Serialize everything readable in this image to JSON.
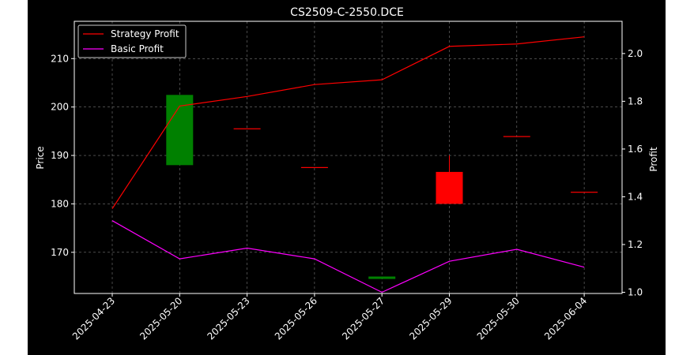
{
  "chart_data": {
    "type": "candlestick+line",
    "title": "CS2509-C-2550.DCE",
    "ylabel_left": "Price",
    "ylabel_right": "Profit",
    "xlabel": "",
    "categories": [
      "2025-04-23",
      "2025-05-20",
      "2025-05-23",
      "2025-05-26",
      "2025-05-27",
      "2025-05-29",
      "2025-05-30",
      "2025-06-04"
    ],
    "ylim_left": [
      161.5,
      217.7
    ],
    "ylim_right": [
      0.995,
      2.135
    ],
    "yticks_left": [
      170,
      180,
      190,
      200,
      210
    ],
    "yticks_right": [
      1.0,
      1.2,
      1.4,
      1.6,
      1.8,
      2.0
    ],
    "grid": true,
    "legend_position": "upper-left",
    "candles": [
      {
        "date": "2025-05-20",
        "open": 188.0,
        "close": 202.5,
        "high": 202.5,
        "low": 188.0,
        "color": "#008000"
      },
      {
        "date": "2025-05-23",
        "open": 195.6,
        "close": 195.6,
        "high": 195.6,
        "low": 195.6,
        "color": "#ff0000"
      },
      {
        "date": "2025-05-26",
        "open": 187.6,
        "close": 187.6,
        "high": 187.6,
        "low": 187.6,
        "color": "#ff0000"
      },
      {
        "date": "2025-05-27",
        "open": 164.5,
        "close": 165.0,
        "high": 165.0,
        "low": 164.5,
        "color": "#008000"
      },
      {
        "date": "2025-05-29",
        "open": 186.6,
        "close": 180.0,
        "high": 190.0,
        "low": 180.0,
        "color": "#ff0000"
      },
      {
        "date": "2025-05-30",
        "open": 194.0,
        "close": 194.0,
        "high": 194.0,
        "low": 194.0,
        "color": "#ff0000"
      },
      {
        "date": "2025-06-04",
        "open": 182.5,
        "close": 182.5,
        "high": 182.5,
        "low": 182.5,
        "color": "#ff0000"
      }
    ],
    "series": [
      {
        "name": "Strategy Profit",
        "color": "#ff0000",
        "values": [
          1.35,
          1.78,
          1.82,
          1.87,
          1.89,
          2.03,
          2.04,
          2.07
        ]
      },
      {
        "name": "Basic Profit",
        "color": "#ff00ff",
        "values": [
          1.3,
          1.14,
          1.185,
          1.14,
          1.0,
          1.13,
          1.18,
          1.105
        ]
      }
    ]
  }
}
